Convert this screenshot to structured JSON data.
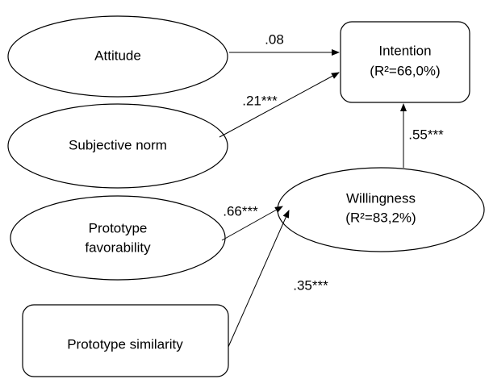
{
  "nodes": [
    {
      "lines": [
        "Attitude"
      ]
    },
    {
      "lines": [
        "Subjective norm"
      ]
    },
    {
      "lines": [
        "Prototype",
        "favorability"
      ]
    },
    {
      "lines": [
        "Prototype similarity"
      ]
    },
    {
      "lines": [
        "Intention",
        "(R²=66,0%)"
      ]
    },
    {
      "lines": [
        "Willingness",
        "(R²=83,2%)"
      ]
    }
  ],
  "edges": [
    {
      "label": ".08"
    },
    {
      "label": ".21***"
    },
    {
      "label": ".55***"
    },
    {
      "label": ".66***"
    },
    {
      "label": ".35***"
    }
  ]
}
